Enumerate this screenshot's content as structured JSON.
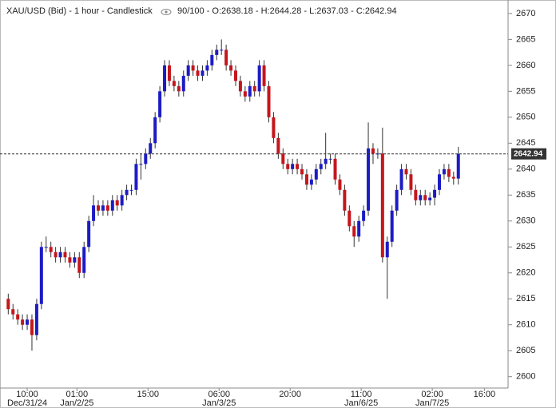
{
  "chart_data": {
    "type": "candlestick",
    "title": "XAU/USD (Bid) - 1 hour - Candlestick",
    "subtitle": "90/100 - O:2638.18 - H:2644.28 - L:2637.03 - C:2642.94",
    "up_color": "#1c1cc4",
    "down_color": "#c4161c",
    "open": [
      2615,
      2613,
      2612,
      2611,
      2610,
      2611,
      2608,
      2614,
      2625,
      2625,
      2624,
      2623,
      2624,
      2623,
      2622,
      2623,
      2620,
      2625,
      2630,
      2633,
      2632,
      2633,
      2632,
      2634,
      2633,
      2635,
      2636,
      2636,
      2641,
      2641,
      2643,
      2645,
      2650,
      2655,
      2660,
      2657,
      2656,
      2655,
      2658,
      2660,
      2659,
      2658,
      2659,
      2660,
      2662,
      2663,
      2663,
      2660,
      2659,
      2657,
      2655,
      2654,
      2656,
      2655,
      2660,
      2656,
      2650,
      2646,
      2643,
      2641,
      2640,
      2641,
      2640,
      2639,
      2637,
      2638,
      2640,
      2641,
      2642,
      2642,
      2638,
      2636,
      2632,
      2629,
      2627,
      2630,
      2632,
      2644,
      2643,
      2643,
      2623,
      2626,
      2632,
      2636,
      2640,
      2639,
      2636,
      2634,
      2635,
      2634,
      2634.5,
      2636,
      2639,
      2640,
      2638.5,
      2638.18
    ],
    "high": [
      2616,
      2614,
      2613,
      2612,
      2612,
      2612,
      2615,
      2626,
      2627,
      2626,
      2625,
      2625,
      2625,
      2624,
      2624,
      2624,
      2626,
      2631,
      2635,
      2634,
      2634,
      2634,
      2635,
      2635,
      2636,
      2637,
      2637,
      2642,
      2643,
      2644,
      2646,
      2651,
      2656,
      2661,
      2661,
      2658,
      2657,
      2659,
      2661,
      2661,
      2660,
      2660,
      2661,
      2663,
      2664,
      2665,
      2664,
      2661,
      2660,
      2658,
      2656,
      2657,
      2657,
      2661,
      2661,
      2657,
      2651,
      2647,
      2644,
      2642,
      2642,
      2642,
      2641,
      2640,
      2639,
      2641,
      2642,
      2647,
      2643,
      2643,
      2639,
      2637,
      2633,
      2630,
      2631,
      2633,
      2649,
      2645,
      2644,
      2648,
      2627,
      2633,
      2637,
      2641,
      2641,
      2640,
      2637,
      2636,
      2636,
      2635.5,
      2637,
      2640,
      2641,
      2641,
      2639.5,
      2644.28
    ],
    "low": [
      2612,
      2611,
      2610,
      2609,
      2609,
      2605,
      2607,
      2613,
      2624,
      2623,
      2622,
      2622,
      2622,
      2621,
      2621,
      2619,
      2619,
      2624,
      2629,
      2631,
      2631,
      2631,
      2631,
      2632,
      2632,
      2634,
      2635,
      2635,
      2638,
      2640,
      2642,
      2644,
      2649,
      2654,
      2656,
      2655,
      2654,
      2654,
      2657,
      2658,
      2657,
      2657,
      2658,
      2659,
      2661,
      2662,
      2659,
      2658,
      2656,
      2654,
      2653,
      2653,
      2654,
      2654,
      2655,
      2649,
      2645,
      2642,
      2640,
      2639,
      2639,
      2639,
      2638,
      2636,
      2636,
      2637,
      2639,
      2640,
      2641,
      2637,
      2635,
      2631,
      2628,
      2625,
      2626,
      2629,
      2631,
      2641,
      2642,
      2622,
      2615,
      2625,
      2631,
      2635,
      2638,
      2635,
      2633,
      2633,
      2633,
      2633,
      2633,
      2635,
      2638,
      2637.5,
      2637,
      2637.03
    ],
    "close": [
      2613,
      2612,
      2611,
      2610,
      2611,
      2608,
      2614,
      2625,
      2625,
      2624,
      2623,
      2624,
      2623,
      2622,
      2623,
      2620,
      2625,
      2630,
      2633,
      2632,
      2633,
      2632,
      2634,
      2633,
      2635,
      2636,
      2636,
      2641,
      2641,
      2643,
      2645,
      2650,
      2655,
      2660,
      2657,
      2656,
      2655,
      2658,
      2660,
      2659,
      2658,
      2659,
      2660,
      2662,
      2663,
      2663,
      2660,
      2659,
      2657,
      2655,
      2654,
      2656,
      2655,
      2660,
      2656,
      2650,
      2646,
      2643,
      2641,
      2640,
      2641,
      2640,
      2639,
      2637,
      2638,
      2640,
      2641,
      2642,
      2642,
      2638,
      2636,
      2632,
      2629,
      2627,
      2630,
      2632,
      2644,
      2643,
      2643,
      2623,
      2626,
      2632,
      2636,
      2640,
      2639,
      2636,
      2634,
      2635,
      2634,
      2634.5,
      2636,
      2639,
      2640,
      2638.5,
      2638.18,
      2642.94
    ],
    "xlim": [
      -1.74,
      105.5
    ],
    "xticks": [
      {
        "value": 4,
        "label": "10:00"
      },
      {
        "value": 14.5,
        "label": "01:00"
      },
      {
        "value": 29.5,
        "label": "15:00"
      },
      {
        "value": 44.5,
        "label": "06:00"
      },
      {
        "value": 59.5,
        "label": "20:00"
      },
      {
        "value": 74.5,
        "label": "11:00"
      },
      {
        "value": 89.5,
        "label": "02:00"
      },
      {
        "value": 100.5,
        "label": "16:00"
      }
    ],
    "xdates": [
      {
        "value": 4,
        "label": "Dec/31/24"
      },
      {
        "value": 14.5,
        "label": "Jan/2/25"
      },
      {
        "value": 44.5,
        "label": "Jan/3/25"
      },
      {
        "value": 74.5,
        "label": "Jan/6/25"
      },
      {
        "value": 89.5,
        "label": "Jan/7/25"
      }
    ],
    "ylim": [
      2597.8,
      2672.6
    ],
    "yticks": [
      2600,
      2605,
      2610,
      2615,
      2620,
      2625,
      2630,
      2635,
      2640,
      2645,
      2650,
      2655,
      2660,
      2665,
      2670
    ],
    "grid": false,
    "last_price_line": true
  }
}
